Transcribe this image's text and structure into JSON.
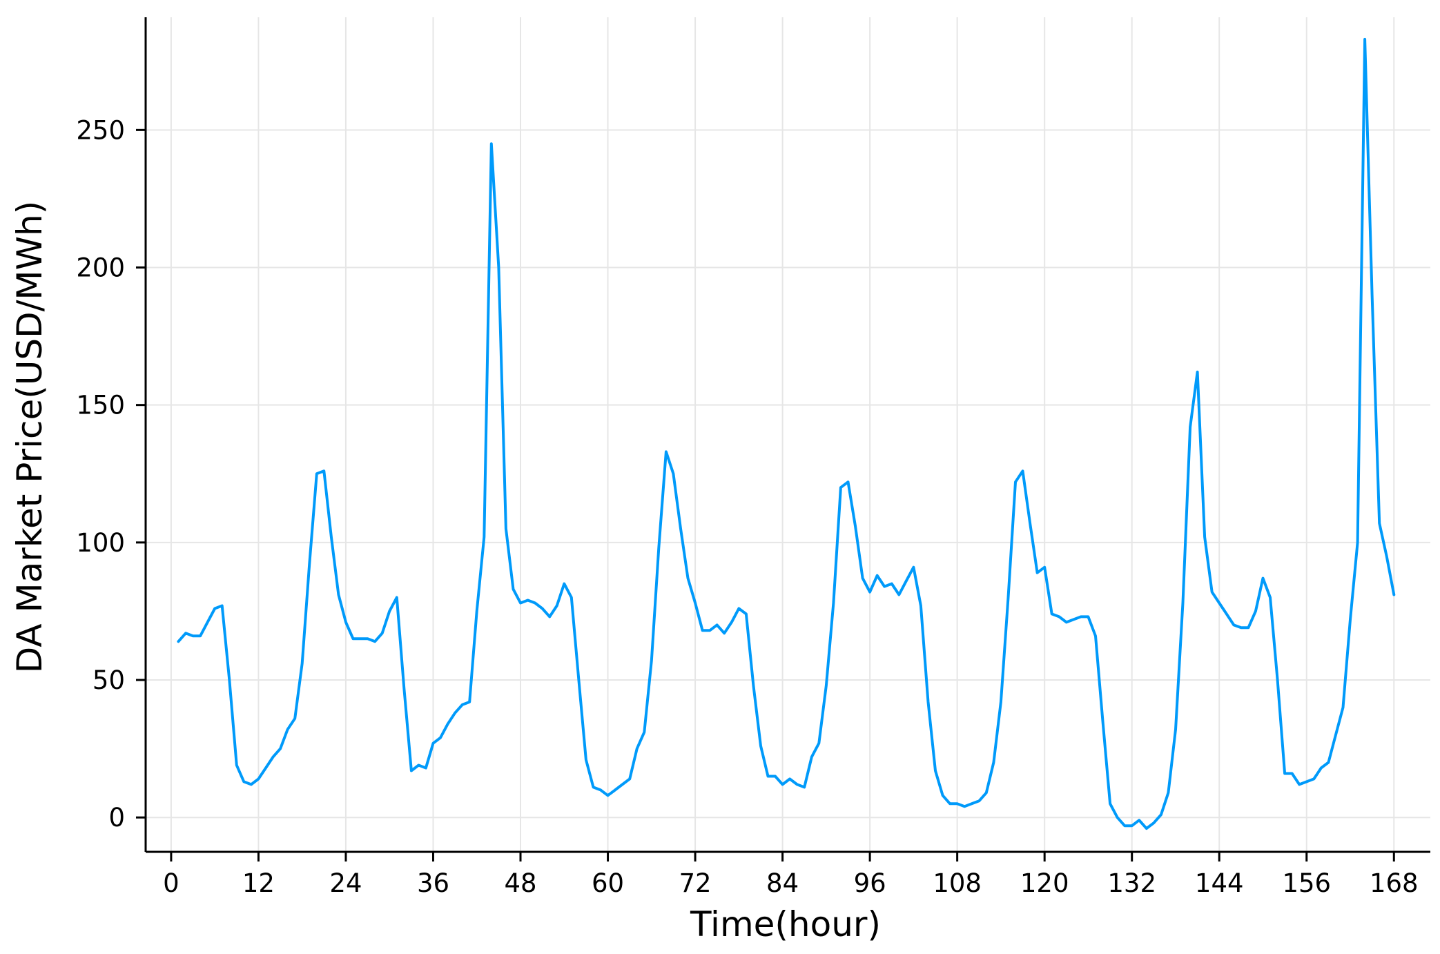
{
  "chart_data": {
    "type": "line",
    "title": "",
    "xlabel": "Time(hour)",
    "ylabel": "DA Market Price(USD/MWh)",
    "xlim": [
      -3.5,
      173
    ],
    "ylim": [
      -12.5,
      291
    ],
    "xticks": [
      0,
      12,
      24,
      36,
      48,
      60,
      72,
      84,
      96,
      108,
      120,
      132,
      144,
      156,
      168
    ],
    "yticks": [
      0,
      50,
      100,
      150,
      200,
      250
    ],
    "grid": true,
    "legend": "none",
    "series": [
      {
        "color": "#009AFA",
        "x": [
          1,
          2,
          3,
          4,
          5,
          6,
          7,
          8,
          9,
          10,
          11,
          12,
          13,
          14,
          15,
          16,
          17,
          18,
          19,
          20,
          21,
          22,
          23,
          24,
          25,
          26,
          27,
          28,
          29,
          30,
          31,
          32,
          33,
          34,
          35,
          36,
          37,
          38,
          39,
          40,
          41,
          42,
          43,
          44,
          45,
          46,
          47,
          48,
          49,
          50,
          51,
          52,
          53,
          54,
          55,
          56,
          57,
          58,
          59,
          60,
          61,
          62,
          63,
          64,
          65,
          66,
          67,
          68,
          69,
          70,
          71,
          72,
          73,
          74,
          75,
          76,
          77,
          78,
          79,
          80,
          81,
          82,
          83,
          84,
          85,
          86,
          87,
          88,
          89,
          90,
          91,
          92,
          93,
          94,
          95,
          96,
          97,
          98,
          99,
          100,
          101,
          102,
          103,
          104,
          105,
          106,
          107,
          108,
          109,
          110,
          111,
          112,
          113,
          114,
          115,
          116,
          117,
          118,
          119,
          120,
          121,
          122,
          123,
          124,
          125,
          126,
          127,
          128,
          129,
          130,
          131,
          132,
          133,
          134,
          135,
          136,
          137,
          138,
          139,
          140,
          141,
          142,
          143,
          144,
          145,
          146,
          147,
          148,
          149,
          150,
          151,
          152,
          153,
          154,
          155,
          156,
          157,
          158,
          159,
          160,
          161,
          162,
          163,
          164,
          165,
          166,
          167,
          168
        ],
        "values": [
          64,
          67,
          66,
          66,
          71,
          76,
          77,
          50,
          19,
          13,
          12,
          14,
          18,
          22,
          25,
          32,
          36,
          56,
          92,
          125,
          126,
          102,
          81,
          71,
          65,
          65,
          65,
          64,
          67,
          75,
          80,
          47,
          17,
          19,
          18,
          27,
          29,
          34,
          38,
          41,
          42,
          75,
          102,
          245,
          200,
          105,
          83,
          78,
          79,
          78,
          76,
          73,
          77,
          85,
          80,
          50,
          21,
          11,
          10,
          8,
          10,
          12,
          14,
          25,
          31,
          57,
          98,
          133,
          125,
          105,
          87,
          78,
          68,
          68,
          70,
          67,
          71,
          76,
          74,
          48,
          26,
          15,
          15,
          12,
          14,
          12,
          11,
          22,
          27,
          48,
          78,
          120,
          122,
          106,
          87,
          82,
          88,
          84,
          85,
          81,
          86,
          91,
          77,
          42,
          17,
          8,
          5,
          5,
          4,
          5,
          6,
          9,
          20,
          42,
          80,
          122,
          126,
          107,
          89,
          91,
          74,
          73,
          71,
          72,
          73,
          73,
          66,
          35,
          5,
          0,
          -3,
          -3,
          -1,
          -4,
          -2,
          1,
          9,
          32,
          78,
          142,
          162,
          102,
          82,
          78,
          74,
          70,
          69,
          69,
          75,
          87,
          80,
          50,
          16,
          16,
          12,
          13,
          14,
          18,
          20,
          30,
          40,
          72,
          100,
          283,
          190,
          107,
          95,
          81
        ]
      }
    ]
  }
}
